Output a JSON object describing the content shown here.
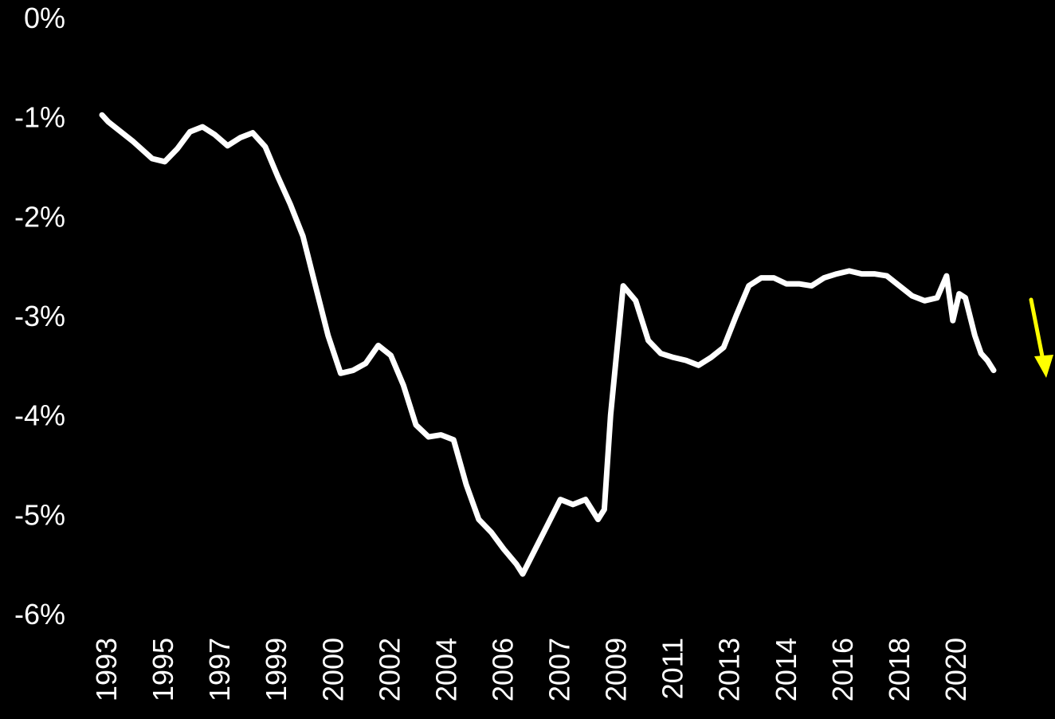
{
  "chart_data": {
    "type": "line",
    "title": "",
    "xlabel": "",
    "ylabel": "",
    "ylim": [
      -6,
      0
    ],
    "grid": false,
    "legend": "none",
    "y_ticks": [
      0,
      -1,
      -2,
      -3,
      -4,
      -5,
      -6
    ],
    "y_tick_labels": [
      "0%",
      "-1%",
      "-2%",
      "-3%",
      "-4%",
      "-5%",
      "-6%"
    ],
    "x_tick_labels": [
      "1993",
      "1995",
      "1997",
      "1999",
      "2000",
      "2002",
      "2004",
      "2006",
      "2007",
      "2009",
      "2011",
      "2013",
      "2014",
      "2016",
      "2018",
      "2020"
    ],
    "colors": {
      "background": "#000000",
      "line": "#ffffff",
      "trend_arrow": "#ffff00",
      "text": "#ffffff"
    },
    "annotation": {
      "type": "arrow",
      "direction": "down",
      "color": "#ffff00"
    },
    "series": [
      {
        "x": [
          1993.0,
          1993.2,
          1994.0,
          1994.6,
          1995.0,
          1995.4,
          1995.8,
          1996.2,
          1996.6,
          1997.0,
          1997.4,
          1997.8,
          1998.2,
          1998.6,
          1999.0,
          1999.4,
          1999.8,
          2000.2,
          2000.6,
          2001.0,
          2001.4,
          2001.8,
          2002.2,
          2002.6,
          2003.0,
          2003.4,
          2003.8,
          2004.2,
          2004.6,
          2005.0,
          2005.4,
          2005.8,
          2006.2,
          2006.4,
          2006.8,
          2007.2,
          2007.6,
          2008.0,
          2008.4,
          2008.8,
          2009.0,
          2009.2,
          2009.6,
          2010.0,
          2010.4,
          2010.8,
          2011.2,
          2011.6,
          2012.0,
          2012.4,
          2012.8,
          2013.2,
          2013.6,
          2014.0,
          2014.4,
          2014.8,
          2015.2,
          2015.6,
          2016.0,
          2016.4,
          2016.8,
          2017.2,
          2017.6,
          2018.0,
          2018.4,
          2018.8,
          2019.2,
          2019.6,
          2019.9,
          2020.1,
          2020.3,
          2020.5,
          2020.8,
          2021.0,
          2021.2,
          2021.4
        ],
        "y": [
          -0.98,
          -1.05,
          -1.25,
          -1.42,
          -1.45,
          -1.32,
          -1.15,
          -1.1,
          -1.18,
          -1.29,
          -1.21,
          -1.16,
          -1.3,
          -1.6,
          -1.88,
          -2.2,
          -2.7,
          -3.2,
          -3.58,
          -3.55,
          -3.48,
          -3.3,
          -3.4,
          -3.7,
          -4.1,
          -4.22,
          -4.2,
          -4.25,
          -4.7,
          -5.05,
          -5.18,
          -5.35,
          -5.5,
          -5.6,
          -5.35,
          -5.1,
          -4.85,
          -4.9,
          -4.85,
          -5.05,
          -4.95,
          -4.0,
          -2.7,
          -2.85,
          -3.25,
          -3.38,
          -3.42,
          -3.45,
          -3.5,
          -3.42,
          -3.32,
          -3.0,
          -2.7,
          -2.62,
          -2.62,
          -2.68,
          -2.68,
          -2.7,
          -2.62,
          -2.58,
          -2.55,
          -2.58,
          -2.58,
          -2.6,
          -2.7,
          -2.8,
          -2.85,
          -2.82,
          -2.6,
          -3.05,
          -2.78,
          -2.82,
          -3.2,
          -3.38,
          -3.45,
          -3.55
        ]
      }
    ]
  }
}
